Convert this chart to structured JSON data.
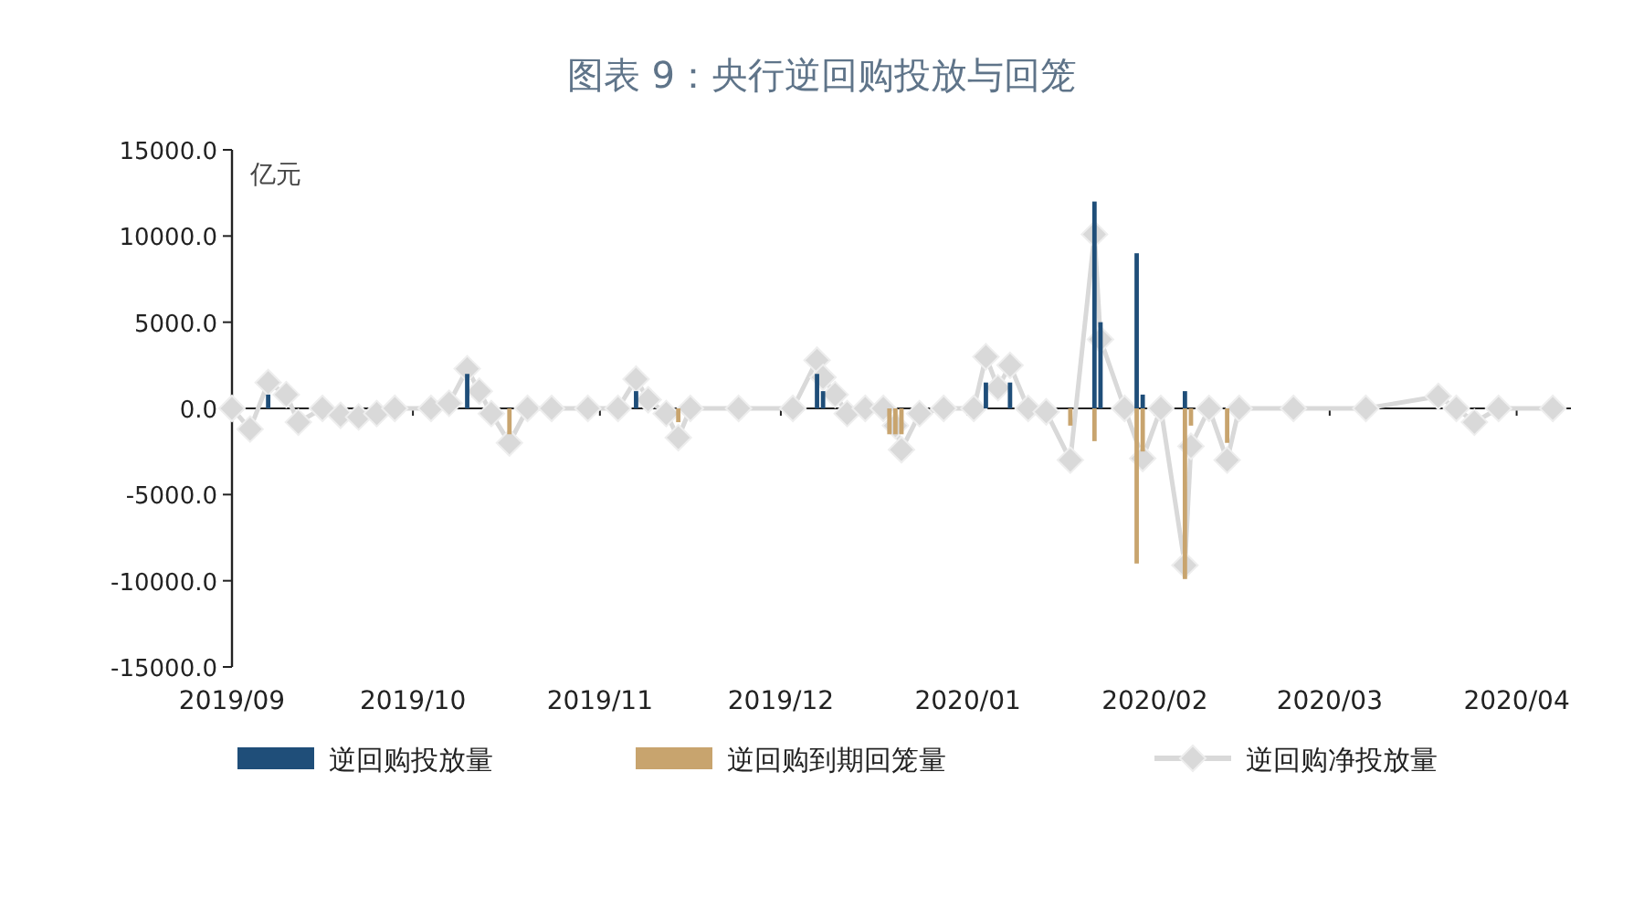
{
  "chart_data": {
    "type": "bar",
    "title": "图表 9：央行逆回购投放与回笼",
    "ylabel": "亿元",
    "xlim": [
      "2019-09-01",
      "2020-04-10"
    ],
    "xticks": [
      {
        "value": "2019-09-01",
        "label": "2019/09"
      },
      {
        "value": "2019-10-01",
        "label": "2019/10"
      },
      {
        "value": "2019-11-01",
        "label": "2019/11"
      },
      {
        "value": "2019-12-01",
        "label": "2019/12"
      },
      {
        "value": "2020-01-01",
        "label": "2020/01"
      },
      {
        "value": "2020-02-01",
        "label": "2020/02"
      },
      {
        "value": "2020-03-01",
        "label": "2020/03"
      },
      {
        "value": "2020-04-01",
        "label": "2020/04"
      }
    ],
    "ylim": [
      -15000,
      15000
    ],
    "yticks": [
      {
        "value": -15000,
        "label": "-15000.0"
      },
      {
        "value": -10000,
        "label": "-10000.0"
      },
      {
        "value": -5000,
        "label": "-5000.0"
      },
      {
        "value": 0,
        "label": "0.0"
      },
      {
        "value": 5000,
        "label": "5000.0"
      },
      {
        "value": 10000,
        "label": "10000.0"
      },
      {
        "value": 15000,
        "label": "15000.0"
      }
    ],
    "legend": "bottom",
    "marker": "diamond",
    "series": [
      {
        "name": "逆回购投放量",
        "color": "#1f4e79",
        "x": [
          "2019-09-07",
          "2019-10-10",
          "2019-11-07",
          "2019-12-07",
          "2019-12-08",
          "2020-01-04",
          "2020-01-08",
          "2020-01-22",
          "2020-01-23",
          "2020-01-29",
          "2020-01-30",
          "2020-02-06"
        ],
        "values": [
          800,
          2000,
          1000,
          2000,
          1000,
          1500,
          1500,
          12000,
          5000,
          9000,
          800,
          1000
        ]
      },
      {
        "name": "逆回购到期回笼量",
        "color": "#c8a46e",
        "x": [
          "2019-10-17",
          "2019-11-14",
          "2019-12-19",
          "2019-12-20",
          "2019-12-21",
          "2020-01-18",
          "2020-01-22",
          "2020-01-29",
          "2020-01-30",
          "2020-02-06",
          "2020-02-07",
          "2020-02-13"
        ],
        "values": [
          -1500,
          -800,
          -1500,
          -1500,
          -1500,
          -1000,
          -1900,
          -9000,
          -2500,
          -9900,
          -1000,
          -2000
        ]
      },
      {
        "name": "逆回购净投放量",
        "type": "line",
        "color": "#d9d9d9",
        "x": [
          "2019-09-01",
          "2019-09-04",
          "2019-09-07",
          "2019-09-10",
          "2019-09-12",
          "2019-09-16",
          "2019-09-19",
          "2019-09-22",
          "2019-09-25",
          "2019-09-28",
          "2019-10-04",
          "2019-10-07",
          "2019-10-10",
          "2019-10-12",
          "2019-10-14",
          "2019-10-17",
          "2019-10-20",
          "2019-10-24",
          "2019-10-30",
          "2019-11-04",
          "2019-11-07",
          "2019-11-09",
          "2019-11-12",
          "2019-11-14",
          "2019-11-16",
          "2019-11-24",
          "2019-12-03",
          "2019-12-07",
          "2019-12-08",
          "2019-12-10",
          "2019-12-12",
          "2019-12-15",
          "2019-12-18",
          "2019-12-20",
          "2019-12-21",
          "2019-12-24",
          "2019-12-28",
          "2020-01-02",
          "2020-01-04",
          "2020-01-06",
          "2020-01-08",
          "2020-01-11",
          "2020-01-14",
          "2020-01-18",
          "2020-01-22",
          "2020-01-23",
          "2020-01-27",
          "2020-01-30",
          "2020-02-02",
          "2020-02-06",
          "2020-02-07",
          "2020-02-10",
          "2020-02-13",
          "2020-02-15",
          "2020-02-24",
          "2020-03-07",
          "2020-03-19",
          "2020-03-22",
          "2020-03-25",
          "2020-03-29",
          "2020-04-07"
        ],
        "values": [
          0,
          -1200,
          1500,
          800,
          -800,
          0,
          -400,
          -500,
          -300,
          0,
          0,
          300,
          2300,
          1000,
          -300,
          -2000,
          0,
          0,
          0,
          0,
          1700,
          500,
          -300,
          -1700,
          0,
          0,
          0,
          2800,
          1800,
          800,
          -300,
          0,
          0,
          -1000,
          -2400,
          -300,
          0,
          0,
          3000,
          1200,
          2500,
          0,
          -200,
          -3000,
          10100,
          4000,
          0,
          -2900,
          0,
          -9100,
          -2200,
          0,
          -3000,
          0,
          0,
          0,
          700,
          0,
          -800,
          0,
          0
        ]
      }
    ]
  }
}
